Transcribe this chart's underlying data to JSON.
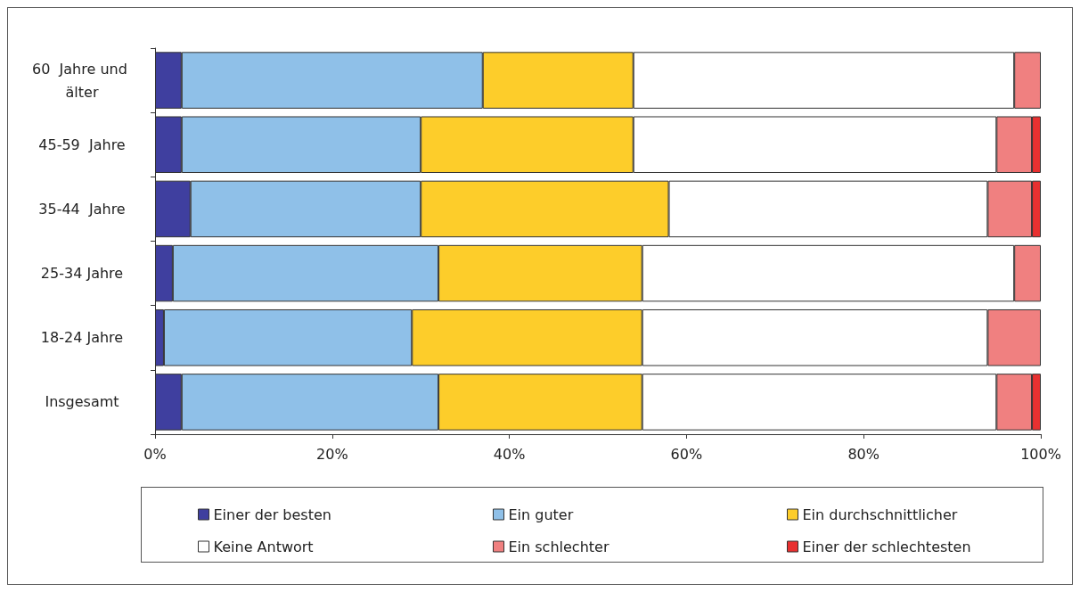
{
  "chart_data": {
    "type": "bar",
    "orientation": "horizontal",
    "stacked": true,
    "categories": [
      "60  Jahre und älter",
      "45-59  Jahre",
      "35-44  Jahre",
      "25-34 Jahre",
      "18-24 Jahre",
      "Insgesamt"
    ],
    "series": [
      {
        "name": "Einer der besten",
        "color": "#3f3f9f",
        "values": [
          3,
          3,
          4,
          2,
          1,
          3
        ]
      },
      {
        "name": "Ein guter",
        "color": "#8fc0e8",
        "values": [
          34,
          27,
          26,
          30,
          28,
          29
        ]
      },
      {
        "name": "Ein durchschnittlicher",
        "color": "#fdcd2a",
        "values": [
          17,
          24,
          28,
          23,
          26,
          23
        ]
      },
      {
        "name": "Keine Antwort",
        "color": "#ffffff",
        "values": [
          43,
          41,
          36,
          42,
          39,
          40
        ]
      },
      {
        "name": "Ein schlechter",
        "color": "#f08080",
        "values": [
          3,
          4,
          5,
          3,
          6,
          4
        ]
      },
      {
        "name": "Einer der schlechtesten",
        "color": "#e83030",
        "values": [
          null,
          1,
          1,
          null,
          null,
          1
        ]
      }
    ],
    "xlim": [
      0,
      100
    ],
    "xticks": [
      {
        "value": 0,
        "label": "0%"
      },
      {
        "value": 20,
        "label": "20%"
      },
      {
        "value": 40,
        "label": "40%"
      },
      {
        "value": 60,
        "label": "60%"
      },
      {
        "value": 80,
        "label": "80%"
      },
      {
        "value": 100,
        "label": "100%"
      }
    ],
    "grid": false,
    "legend": "bottom"
  }
}
